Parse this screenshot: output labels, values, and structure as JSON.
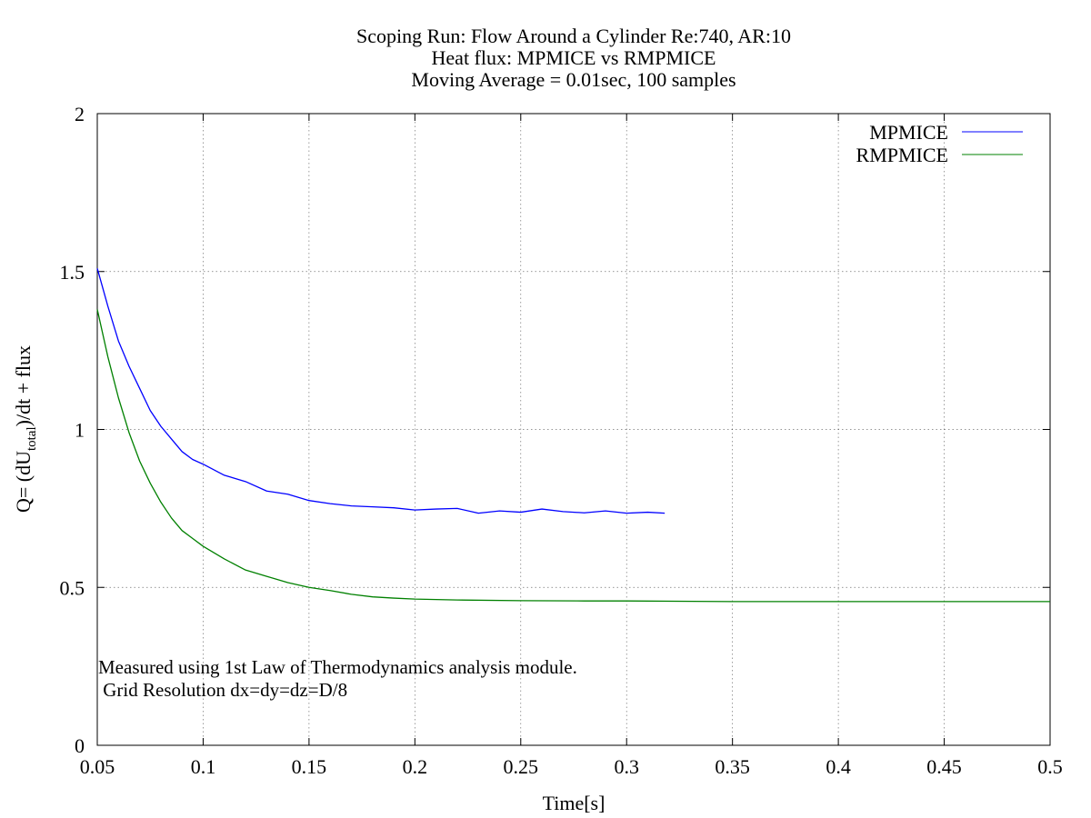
{
  "chart_data": {
    "type": "line",
    "title_lines": [
      "Scoping Run: Flow Around a Cylinder Re:740, AR:10",
      "Heat flux: MPMICE vs RMPMICE",
      "Moving Average = 0.01sec, 100 samples"
    ],
    "xlabel": "Time[s]",
    "ylabel": {
      "prefix": "Q= (dU",
      "subscript": "total",
      "suffix": ")/dt + flux"
    },
    "xlim": [
      0.05,
      0.5
    ],
    "ylim": [
      0,
      2
    ],
    "xticks": [
      0.05,
      0.1,
      0.15,
      0.2,
      0.25,
      0.3,
      0.35,
      0.4,
      0.45,
      0.5
    ],
    "xtick_labels": [
      "0.05",
      "0.1",
      "0.15",
      "0.2",
      "0.25",
      "0.3",
      "0.35",
      "0.4",
      "0.45",
      "0.5"
    ],
    "yticks": [
      0,
      0.5,
      1,
      1.5,
      2
    ],
    "ytick_labels": [
      "0",
      "0.5",
      "1",
      "1.5",
      "2"
    ],
    "grid": true,
    "legend_position": "top-right",
    "annotations": [
      "Measured using 1st Law of Thermodynamics analysis module.",
      " Grid Resolution dx=dy=dz=D/8"
    ],
    "series": [
      {
        "name": "MPMICE",
        "color": "#0000ff",
        "x": [
          0.05,
          0.055,
          0.06,
          0.065,
          0.07,
          0.075,
          0.08,
          0.085,
          0.09,
          0.095,
          0.1,
          0.11,
          0.12,
          0.13,
          0.14,
          0.15,
          0.16,
          0.17,
          0.18,
          0.19,
          0.2,
          0.21,
          0.22,
          0.23,
          0.24,
          0.25,
          0.26,
          0.27,
          0.28,
          0.29,
          0.3,
          0.31,
          0.318
        ],
        "y": [
          1.51,
          1.39,
          1.28,
          1.2,
          1.13,
          1.06,
          1.01,
          0.97,
          0.93,
          0.905,
          0.89,
          0.855,
          0.835,
          0.805,
          0.795,
          0.775,
          0.765,
          0.758,
          0.755,
          0.752,
          0.745,
          0.748,
          0.75,
          0.735,
          0.742,
          0.738,
          0.748,
          0.74,
          0.736,
          0.742,
          0.735,
          0.738,
          0.735
        ]
      },
      {
        "name": "RMPMICE",
        "color": "#008000",
        "x": [
          0.05,
          0.055,
          0.06,
          0.065,
          0.07,
          0.075,
          0.08,
          0.085,
          0.09,
          0.095,
          0.1,
          0.11,
          0.12,
          0.13,
          0.14,
          0.15,
          0.16,
          0.17,
          0.18,
          0.19,
          0.2,
          0.22,
          0.25,
          0.28,
          0.3,
          0.35,
          0.4,
          0.45,
          0.5
        ],
        "y": [
          1.38,
          1.23,
          1.1,
          0.99,
          0.9,
          0.83,
          0.77,
          0.72,
          0.68,
          0.655,
          0.63,
          0.59,
          0.555,
          0.535,
          0.515,
          0.5,
          0.49,
          0.478,
          0.47,
          0.466,
          0.463,
          0.46,
          0.458,
          0.457,
          0.457,
          0.455,
          0.455,
          0.455,
          0.455
        ]
      }
    ]
  }
}
